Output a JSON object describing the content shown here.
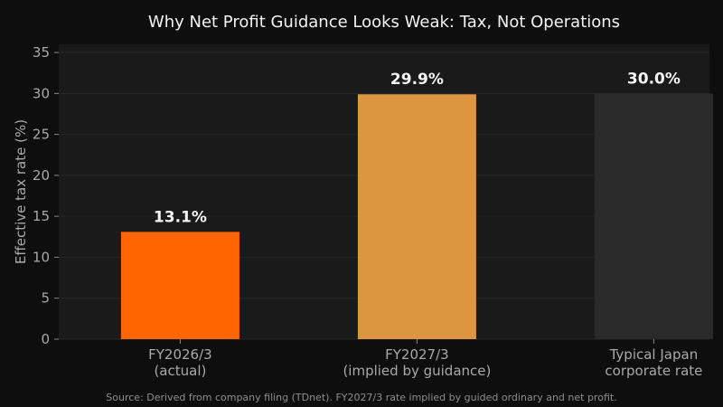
{
  "chart_data": {
    "type": "bar",
    "title": "Why Net Profit Guidance Looks Weak: Tax, Not Operations",
    "ylabel": "Effective tax rate (%)",
    "xlabel": "",
    "ylim": [
      0,
      36
    ],
    "yticks": [
      0,
      5,
      10,
      15,
      20,
      25,
      30,
      35
    ],
    "grid": true,
    "categories": [
      [
        "FY2026/3",
        "(actual)"
      ],
      [
        "FY2027/3",
        "(implied by guidance)"
      ],
      [
        "Typical Japan",
        "corporate rate"
      ]
    ],
    "values": [
      13.1,
      29.9,
      30.0
    ],
    "value_labels": [
      "13.1%",
      "29.9%",
      "30.0%"
    ],
    "colors": [
      "#ff6600",
      "#dd9640",
      "#2a2a2a"
    ]
  },
  "colors": {
    "page_background": "#0e0e0e",
    "plot_background": "#1a1a1a",
    "grid": "#262626"
  },
  "source_note": "Source: Derived from company filing (TDnet). FY2027/3 rate implied by guided ordinary and net profit."
}
